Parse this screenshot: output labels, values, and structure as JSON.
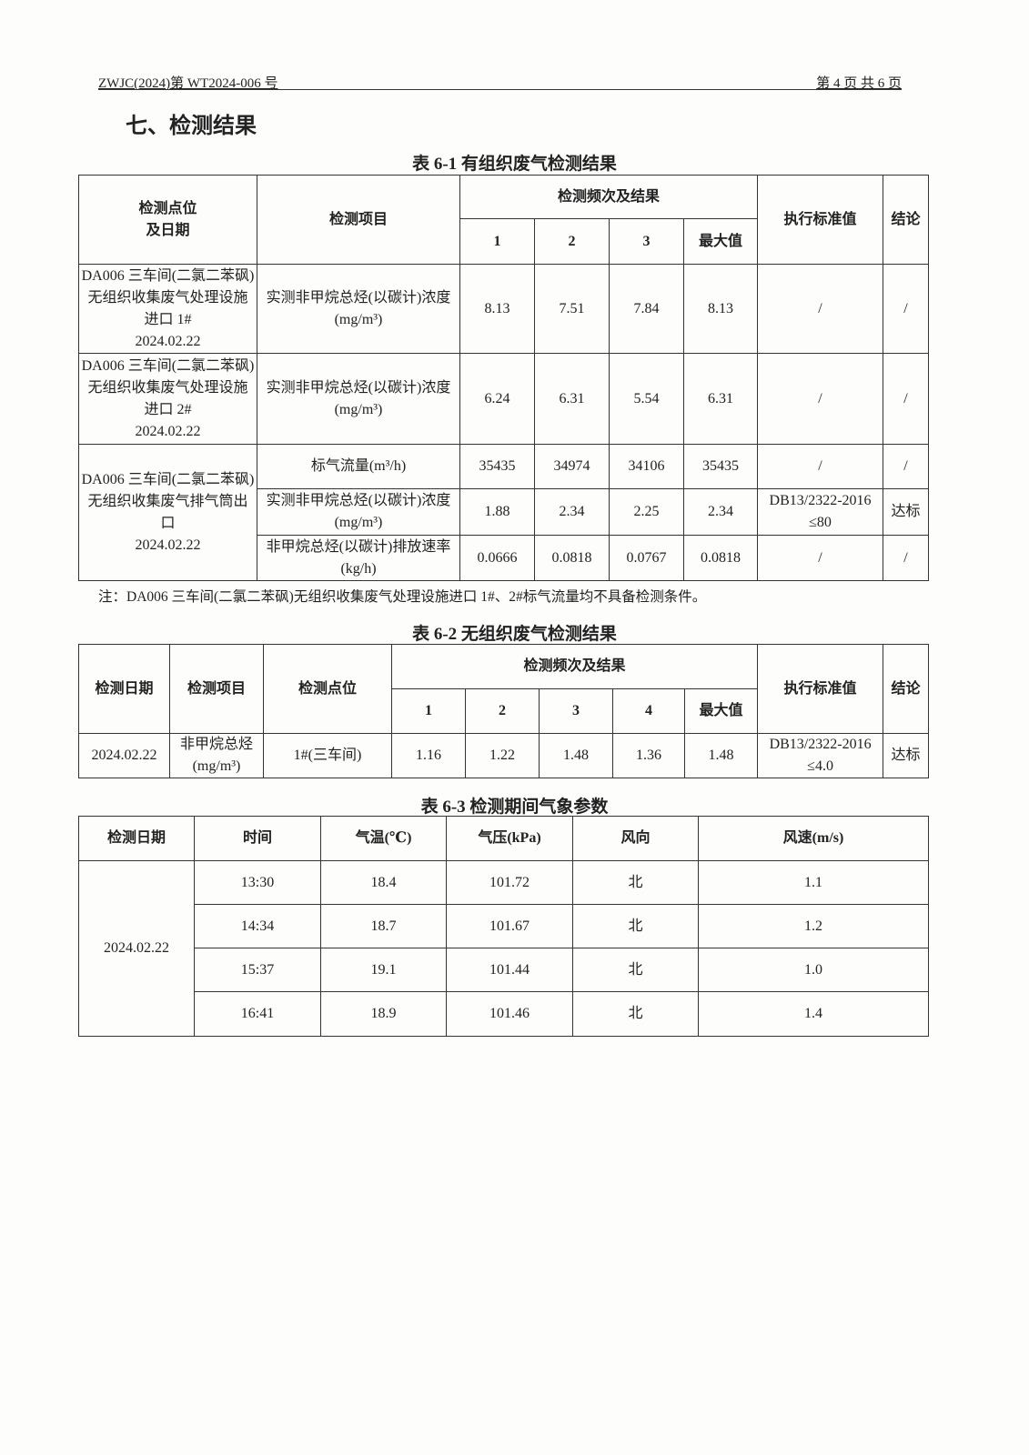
{
  "header": {
    "doc_no": "ZWJC(2024)第 WT2024-006 号",
    "page": "第 4 页 共 6 页"
  },
  "section_title": "七、检测结果",
  "table1": {
    "caption": "表 6-1 有组织废气检测结果",
    "headers": {
      "point": "检测点位\n及日期",
      "item": "检测项目",
      "freq": "检测频次及结果",
      "n1": "1",
      "n2": "2",
      "n3": "3",
      "max": "最大值",
      "standard": "执行标准值",
      "conclusion": "结论"
    },
    "rows": [
      {
        "point": "DA006 三车间(二氯二苯砜)无组织收集废气处理设施进口 1#\n2024.02.22",
        "item": "实测非甲烷总烃(以碳计)浓度(mg/m³)",
        "v1": "8.13",
        "v2": "7.51",
        "v3": "7.84",
        "max": "8.13",
        "standard": "/",
        "conclusion": "/"
      },
      {
        "point": "DA006 三车间(二氯二苯砜)无组织收集废气处理设施进口 2#\n2024.02.22",
        "item": "实测非甲烷总烃(以碳计)浓度(mg/m³)",
        "v1": "6.24",
        "v2": "6.31",
        "v3": "5.54",
        "max": "6.31",
        "standard": "/",
        "conclusion": "/"
      },
      {
        "point": "DA006 三车间(二氯二苯砜)无组织收集废气排气筒出口\n2024.02.22",
        "item": "标气流量(m³/h)",
        "v1": "35435",
        "v2": "34974",
        "v3": "34106",
        "max": "35435",
        "standard": "/",
        "conclusion": "/"
      },
      {
        "item": "实测非甲烷总烃(以碳计)浓度(mg/m³)",
        "v1": "1.88",
        "v2": "2.34",
        "v3": "2.25",
        "max": "2.34",
        "standard": "DB13/2322-2016 ≤80",
        "conclusion": "达标"
      },
      {
        "item": "非甲烷总烃(以碳计)排放速率(kg/h)",
        "v1": "0.0666",
        "v2": "0.0818",
        "v3": "0.0767",
        "max": "0.0818",
        "standard": "/",
        "conclusion": "/"
      }
    ],
    "note": "注：DA006 三车间(二氯二苯砜)无组织收集废气处理设施进口 1#、2#标气流量均不具备检测条件。"
  },
  "table2": {
    "caption": "表 6-2 无组织废气检测结果",
    "headers": {
      "date": "检测日期",
      "item": "检测项目",
      "point": "检测点位",
      "freq": "检测频次及结果",
      "n1": "1",
      "n2": "2",
      "n3": "3",
      "n4": "4",
      "max": "最大值",
      "standard": "执行标准值",
      "conclusion": "结论"
    },
    "row": {
      "date": "2024.02.22",
      "item": "非甲烷总烃(mg/m³)",
      "point": "1#(三车间)",
      "v1": "1.16",
      "v2": "1.22",
      "v3": "1.48",
      "v4": "1.36",
      "max": "1.48",
      "standard": "DB13/2322-2016 ≤4.0",
      "conclusion": "达标"
    }
  },
  "table3": {
    "caption": "表 6-3 检测期间气象参数",
    "headers": {
      "date": "检测日期",
      "time": "时间",
      "temp": "气温(℃)",
      "pressure": "气压(kPa)",
      "wind_dir": "风向",
      "wind_speed": "风速(m/s)"
    },
    "date": "2024.02.22",
    "rows": [
      {
        "time": "13:30",
        "temp": "18.4",
        "pressure": "101.72",
        "wind_dir": "北",
        "wind_speed": "1.1"
      },
      {
        "time": "14:34",
        "temp": "18.7",
        "pressure": "101.67",
        "wind_dir": "北",
        "wind_speed": "1.2"
      },
      {
        "time": "15:37",
        "temp": "19.1",
        "pressure": "101.44",
        "wind_dir": "北",
        "wind_speed": "1.0"
      },
      {
        "time": "16:41",
        "temp": "18.9",
        "pressure": "101.46",
        "wind_dir": "北",
        "wind_speed": "1.4"
      }
    ]
  }
}
